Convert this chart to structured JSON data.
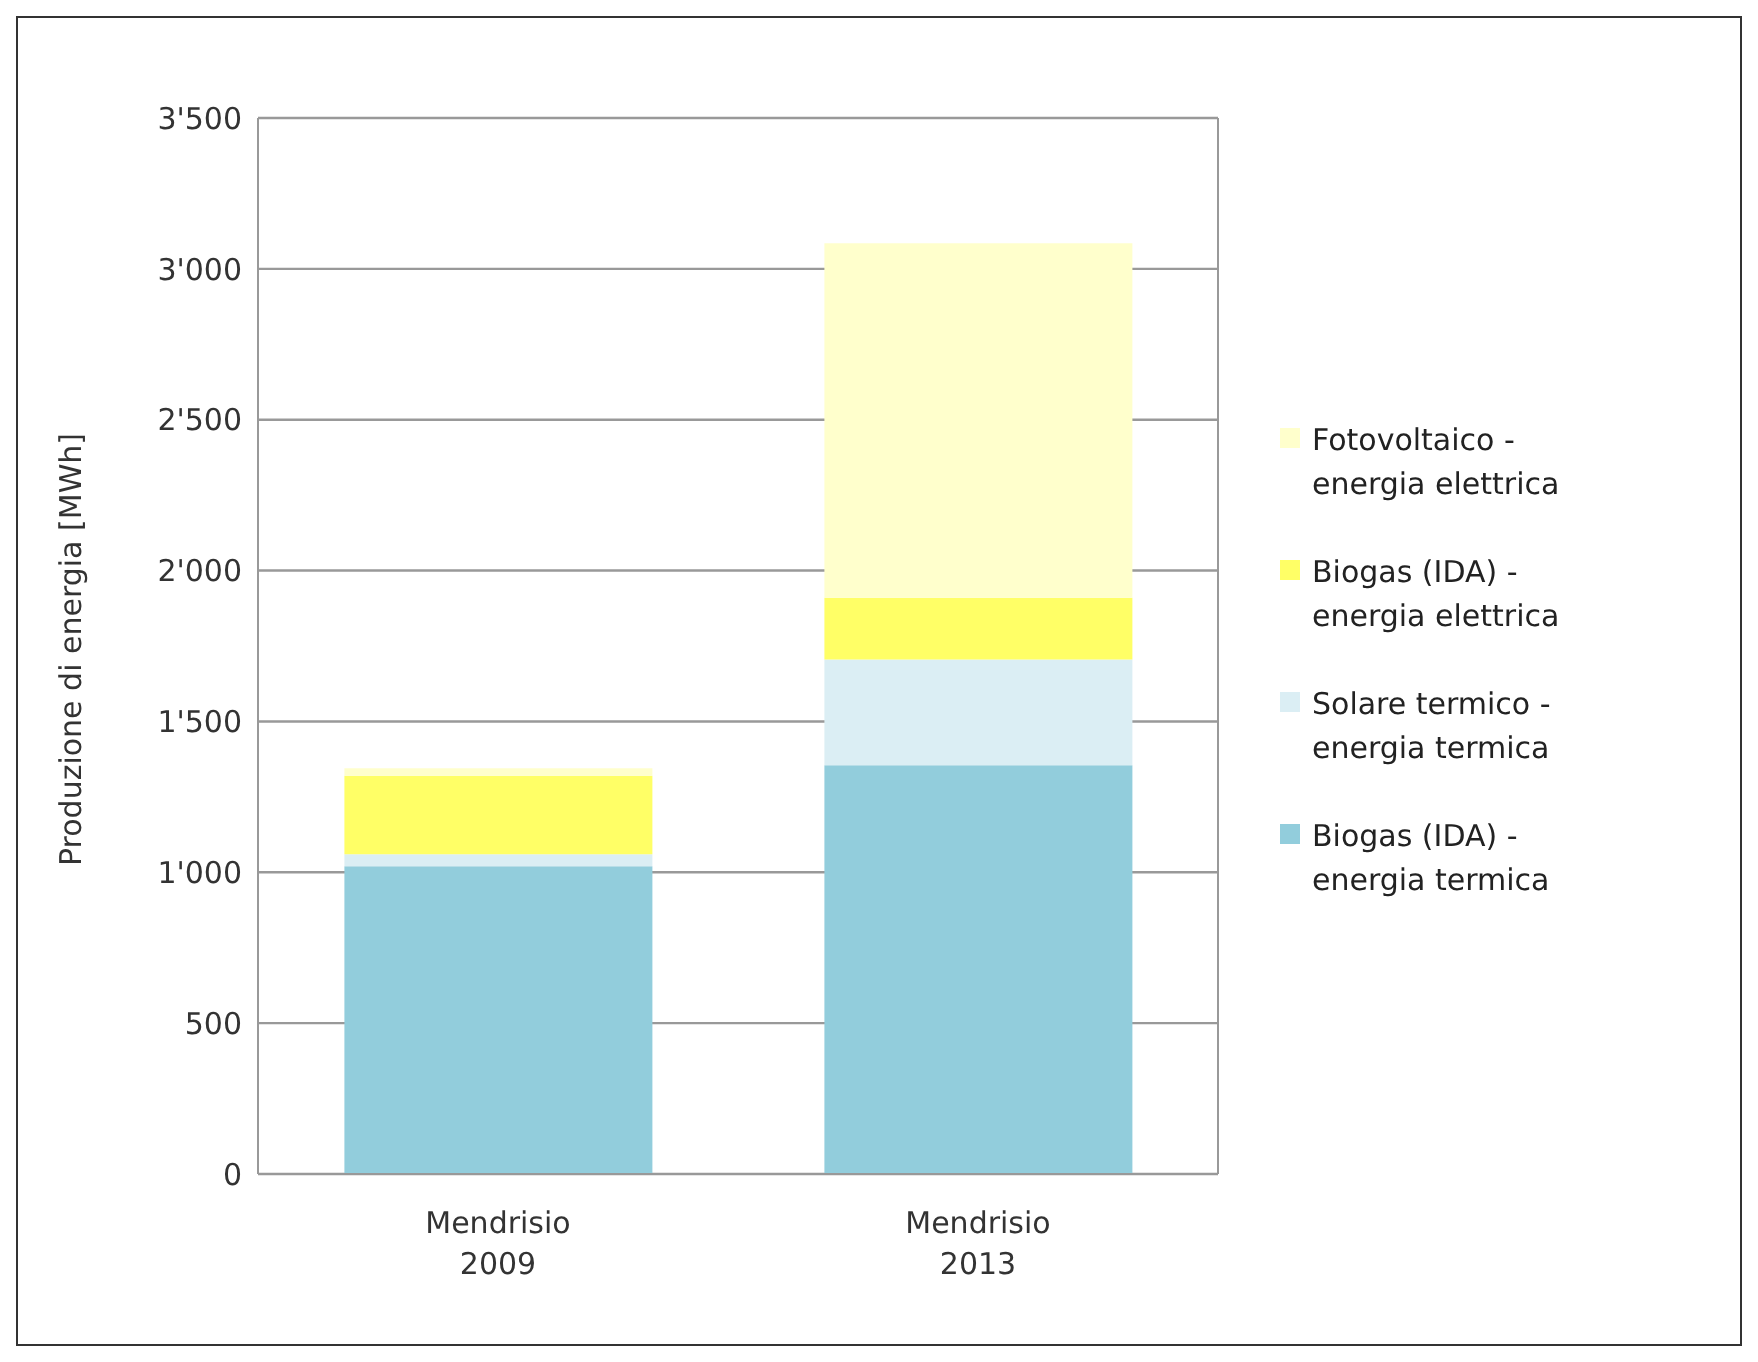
{
  "chart_data": {
    "type": "bar",
    "stacked": true,
    "ylabel": "Produzione di energia [MWh]",
    "categories": [
      "Mendrisio 2009",
      "Mendrisio 2013"
    ],
    "series": [
      {
        "name": "Biogas (IDA) - energia termica",
        "color": "#92cddc",
        "values": [
          1020,
          1355
        ]
      },
      {
        "name": "Solare termico - energia termica",
        "color": "#dbeef4",
        "values": [
          40,
          350
        ]
      },
      {
        "name": "Biogas (IDA) - energia elettrica",
        "color": "#ffff66",
        "values": [
          260,
          205
        ]
      },
      {
        "name": "Fotovoltaico - energia elettrica",
        "color": "#ffffcc",
        "values": [
          25,
          1175
        ]
      }
    ],
    "ylim": [
      0,
      3500
    ],
    "yticks": [
      0,
      500,
      {
        "value": 1000,
        "label": "1'000"
      },
      {
        "value": 1500,
        "label": "1'500"
      },
      {
        "value": 2000,
        "label": "2'000"
      },
      {
        "value": 2500,
        "label": "2'500"
      },
      {
        "value": 3000,
        "label": "3'000"
      },
      {
        "value": 3500,
        "label": "3'500"
      }
    ],
    "grid": "y",
    "legend": "right"
  }
}
